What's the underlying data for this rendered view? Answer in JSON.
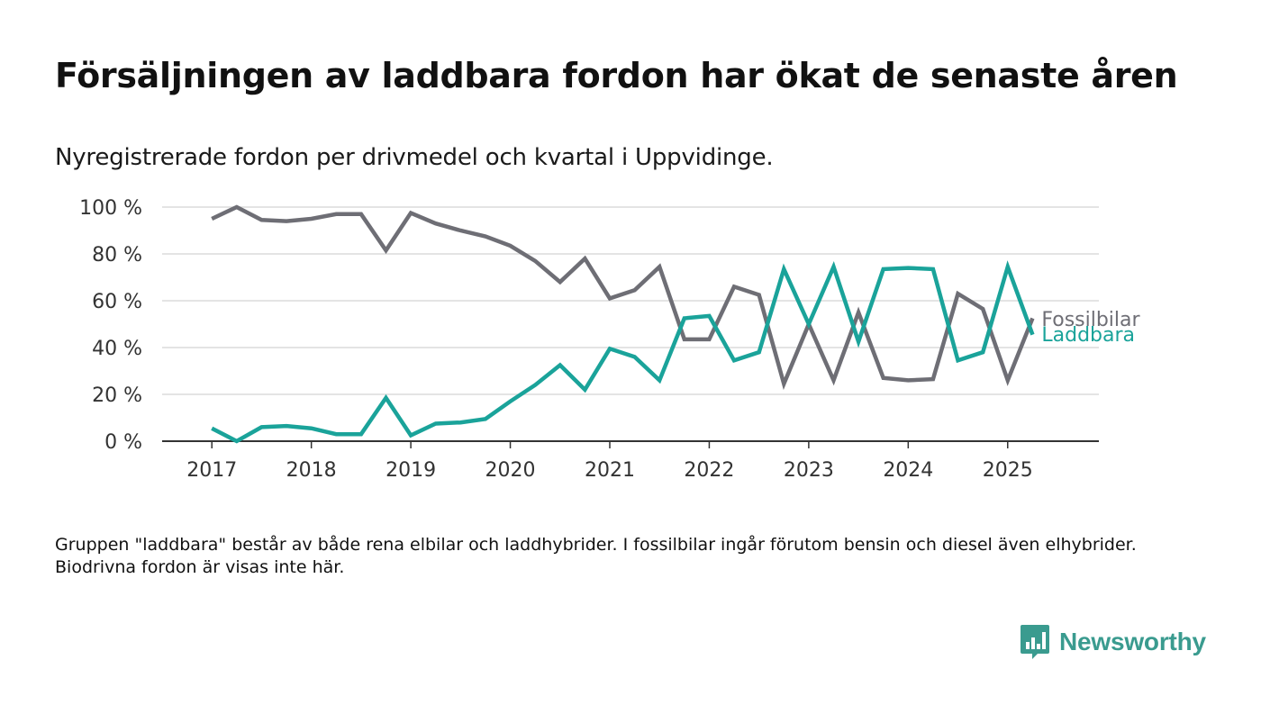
{
  "header": {
    "title": "Försäljningen av laddbara fordon har ökat de senaste åren",
    "subtitle": "Nyregistrerade fordon per drivmedel och kvartal i Uppvidinge."
  },
  "footer": {
    "note": "Gruppen \"laddbara\" består av både rena elbilar och laddhybrider. I fossilbilar ingår förutom bensin och diesel även elhybrider. Biodrivna fordon är visas inte här.",
    "brand": "Newsworthy",
    "brand_icon": "bar-chart-icon",
    "brand_color": "#3a9b8f"
  },
  "chart_data": {
    "type": "line",
    "title": "Försäljningen av laddbara fordon har ökat de senaste åren",
    "subtitle": "Nyregistrerade fordon per drivmedel och kvartal i Uppvidinge.",
    "xlabel": "",
    "ylabel": "",
    "x_ticks": [
      "2017",
      "2018",
      "2019",
      "2020",
      "2021",
      "2022",
      "2023",
      "2024",
      "2025"
    ],
    "y_ticks": [
      "0 %",
      "20 %",
      "40 %",
      "60 %",
      "80 %",
      "100 %"
    ],
    "ylim": [
      0,
      100
    ],
    "xlim": [
      "2016-07",
      "2025-12"
    ],
    "grid": "horizontal",
    "legend": "inline labels at line ends (right)",
    "x": [
      "2017-Q1",
      "2017-Q2",
      "2017-Q3",
      "2017-Q4",
      "2018-Q1",
      "2018-Q2",
      "2018-Q3",
      "2018-Q4",
      "2019-Q1",
      "2019-Q2",
      "2019-Q3",
      "2019-Q4",
      "2020-Q1",
      "2020-Q2",
      "2020-Q3",
      "2020-Q4",
      "2021-Q1",
      "2021-Q2",
      "2021-Q3",
      "2021-Q4",
      "2022-Q1",
      "2022-Q2",
      "2022-Q3",
      "2022-Q4",
      "2023-Q1",
      "2023-Q2",
      "2023-Q3",
      "2023-Q4",
      "2024-Q1",
      "2024-Q2",
      "2024-Q3",
      "2024-Q4",
      "2025-Q1",
      "2025-Q2"
    ],
    "series": [
      {
        "name": "Fossilbilar",
        "color": "#6e6e75",
        "values": [
          95,
          100,
          94.5,
          94,
          95,
          97,
          97,
          81.5,
          97.5,
          93,
          90,
          87.5,
          83.5,
          77,
          68,
          78,
          61,
          64.5,
          74.5,
          43.5,
          43.5,
          66,
          62.5,
          24.5,
          50,
          26,
          55,
          27,
          26,
          26.5,
          63,
          56.5,
          26,
          52.5
        ]
      },
      {
        "name": "Laddbara",
        "color": "#1aa39a",
        "values": [
          5.5,
          0,
          6,
          6.5,
          5.5,
          3,
          3,
          18.5,
          2.5,
          7.5,
          8,
          9.5,
          17,
          24,
          32.5,
          22,
          39.5,
          36,
          26,
          52.5,
          53.5,
          34.5,
          38,
          73.5,
          50,
          74.5,
          42.5,
          73.5,
          74,
          73.5,
          34.5,
          38,
          74.5,
          45.5
        ]
      }
    ]
  }
}
